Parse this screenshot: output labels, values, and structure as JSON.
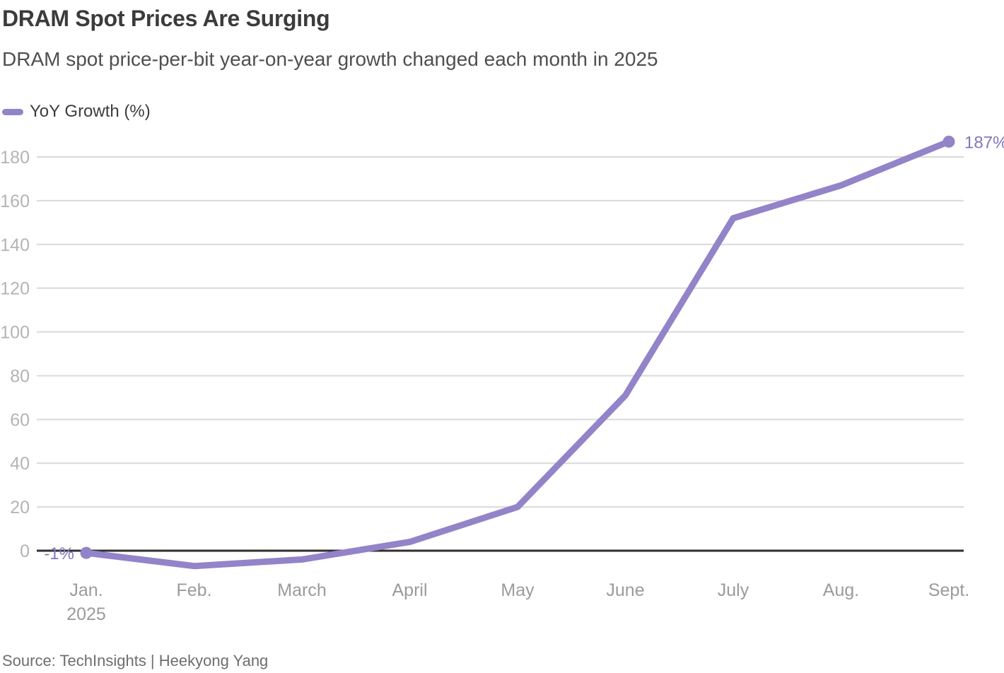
{
  "header": {
    "title": "DRAM Spot Prices Are Surging",
    "subtitle": "DRAM spot price-per-bit year-on-year growth changed each month in 2025"
  },
  "legend": {
    "label": "YoY Growth (%)"
  },
  "chart_data": {
    "type": "line",
    "title": "DRAM Spot Prices Are Surging",
    "xlabel": "",
    "ylabel": "YoY Growth (%)",
    "categories": [
      "Jan.",
      "Feb.",
      "March",
      "April",
      "May",
      "June",
      "July",
      "Aug.",
      "Sept."
    ],
    "x_sub_label": "2025",
    "x_sub_label_index": 0,
    "series": [
      {
        "name": "YoY Growth (%)",
        "values": [
          -1,
          -7,
          -4,
          4,
          20,
          71,
          152,
          167,
          187
        ]
      }
    ],
    "point_labels": [
      {
        "index": 0,
        "text": "-1%",
        "side": "left"
      },
      {
        "index": 8,
        "text": "187%",
        "side": "right"
      }
    ],
    "markers": [
      0,
      8
    ],
    "yticks": [
      0,
      20,
      40,
      60,
      80,
      100,
      120,
      140,
      160,
      180
    ],
    "ylim": [
      -12,
      192
    ],
    "grid": "horizontal",
    "zero_line": true,
    "legend_position": "top-left"
  },
  "footer": {
    "source": "Source: TechInsights | Heekyong Yang"
  },
  "colors": {
    "line": "#9383c8",
    "accent_text": "#8576bd",
    "grid": "#d9d9d9",
    "zero_line": "#2e2e2e",
    "y_tick_label": "#b4b4b4",
    "x_tick_label": "#9b9b9b",
    "title": "#3b3b3b",
    "subtitle": "#4f4f4f",
    "source": "#6e6e6e"
  }
}
